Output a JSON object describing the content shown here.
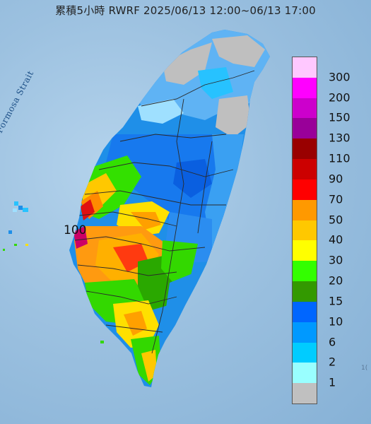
{
  "title": "累積5小時 RWRF 2025/06/13 12:00~06/13 17:00",
  "sea_label": "Formosa Strait",
  "contour_label": "100",
  "edge_fragment": "1(",
  "legend": {
    "items": [
      {
        "label": "300",
        "color": "#ffc8ff"
      },
      {
        "label": "200",
        "color": "#ff00ff"
      },
      {
        "label": "150",
        "color": "#cc00cc"
      },
      {
        "label": "130",
        "color": "#990099"
      },
      {
        "label": "110",
        "color": "#990000"
      },
      {
        "label": "90",
        "color": "#cc0000"
      },
      {
        "label": "70",
        "color": "#ff0000"
      },
      {
        "label": "50",
        "color": "#ff9900"
      },
      {
        "label": "40",
        "color": "#ffc800"
      },
      {
        "label": "30",
        "color": "#ffff00"
      },
      {
        "label": "20",
        "color": "#33ff00"
      },
      {
        "label": "15",
        "color": "#339900"
      },
      {
        "label": "10",
        "color": "#0066ff"
      },
      {
        "label": "6",
        "color": "#0099ff"
      },
      {
        "label": "2",
        "color": "#00ccff"
      },
      {
        "label": "1",
        "color": "#99ffff"
      },
      {
        "label": "",
        "color": "#c0c0c0"
      }
    ]
  }
}
